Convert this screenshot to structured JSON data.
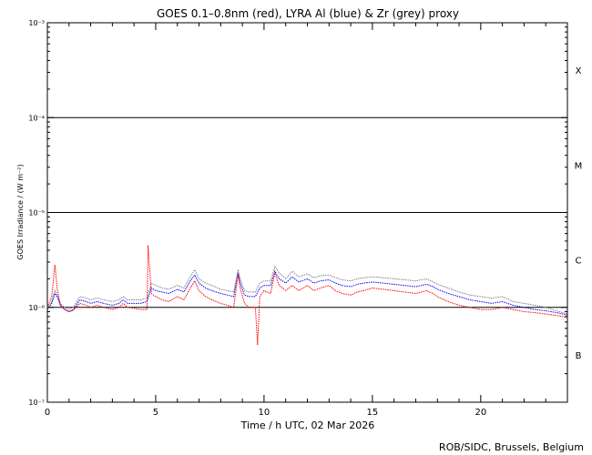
{
  "chart_data": {
    "type": "line",
    "title": "GOES 0.1–0.8nm (red), LYRA Al (blue) & Zr (grey) proxy",
    "xlabel": "Time / h UTC, 02 Mar 2026",
    "ylabel": "GOES Irradiance / (W m⁻²)",
    "xlim": [
      0,
      24
    ],
    "ylim_exponent": [
      -7,
      -3
    ],
    "yscale": "log",
    "x_ticks": [
      0,
      5,
      10,
      15,
      20
    ],
    "x_tick_labels": [
      "0",
      "5",
      "10",
      "15",
      "20"
    ],
    "y_ticks": [
      {
        "exp": -7,
        "label": "10⁻⁷"
      },
      {
        "exp": -6,
        "label": "10⁻⁶"
      },
      {
        "exp": -5,
        "label": "10⁻⁵"
      },
      {
        "exp": -4,
        "label": "10⁻⁴"
      },
      {
        "exp": -3,
        "label": "10⁻³"
      }
    ],
    "flare_classes": [
      {
        "label": "X",
        "exp": -3.5
      },
      {
        "label": "M",
        "exp": -4.5
      },
      {
        "label": "C",
        "exp": -5.5
      },
      {
        "label": "B",
        "exp": -6.5
      }
    ],
    "class_lines_exp": [
      -6,
      -5,
      -4
    ],
    "grid": false,
    "legend": "none",
    "colors": {
      "goes": "#ff0000",
      "lyra_al": "#0000ff",
      "lyra_zr": "#808080"
    },
    "series": [
      {
        "name": "GOES 0.1–0.8nm",
        "x": [
          0,
          0.2,
          0.35,
          0.45,
          0.6,
          0.8,
          1.0,
          1.2,
          1.5,
          1.8,
          2.0,
          2.3,
          2.6,
          3.0,
          3.3,
          3.5,
          3.7,
          4.0,
          4.3,
          4.6,
          4.65,
          4.8,
          5.0,
          5.3,
          5.6,
          6.0,
          6.3,
          6.6,
          6.8,
          7.0,
          7.3,
          7.6,
          8.0,
          8.3,
          8.6,
          8.8,
          8.9,
          9.1,
          9.3,
          9.6,
          9.7,
          9.8,
          10.0,
          10.3,
          10.5,
          10.7,
          11.0,
          11.3,
          11.6,
          12.0,
          12.3,
          12.6,
          13.0,
          13.3,
          13.6,
          14.0,
          14.3,
          14.6,
          15.0,
          15.5,
          16.0,
          16.5,
          17.0,
          17.5,
          17.8,
          18.0,
          18.5,
          19.0,
          19.5,
          20.0,
          20.5,
          21.0,
          21.5,
          22.0,
          22.5,
          23.0,
          23.5,
          24.0
        ],
        "y": [
          1e-06,
          1.3e-06,
          2.8e-06,
          1.6e-06,
          1.05e-06,
          9.5e-07,
          9e-07,
          9.3e-07,
          1.1e-06,
          1.05e-06,
          1e-06,
          1.05e-06,
          1e-06,
          9.5e-07,
          1e-06,
          1.1e-06,
          1e-06,
          9.8e-07,
          9.5e-07,
          9.5e-07,
          4.5e-06,
          1.4e-06,
          1.3e-06,
          1.2e-06,
          1.15e-06,
          1.3e-06,
          1.2e-06,
          1.6e-06,
          1.9e-06,
          1.5e-06,
          1.3e-06,
          1.2e-06,
          1.1e-06,
          1.05e-06,
          1e-06,
          2.2e-06,
          1.6e-06,
          1.1e-06,
          1e-06,
          1e-06,
          4e-07,
          1.3e-06,
          1.5e-06,
          1.4e-06,
          2.3e-06,
          1.7e-06,
          1.5e-06,
          1.7e-06,
          1.5e-06,
          1.7e-06,
          1.5e-06,
          1.6e-06,
          1.7e-06,
          1.5e-06,
          1.4e-06,
          1.35e-06,
          1.45e-06,
          1.5e-06,
          1.6e-06,
          1.55e-06,
          1.5e-06,
          1.45e-06,
          1.4e-06,
          1.5e-06,
          1.4e-06,
          1.3e-06,
          1.15e-06,
          1.05e-06,
          1e-06,
          9.5e-07,
          9.5e-07,
          1e-06,
          9.5e-07,
          9e-07,
          8.8e-07,
          8.5e-07,
          8.2e-07,
          7.8e-07
        ]
      },
      {
        "name": "LYRA Al",
        "x": [
          0,
          0.2,
          0.35,
          0.45,
          0.6,
          0.8,
          1.0,
          1.2,
          1.5,
          1.8,
          2.0,
          2.3,
          2.6,
          3.0,
          3.3,
          3.5,
          3.7,
          4.0,
          4.3,
          4.6,
          4.8,
          5.0,
          5.3,
          5.6,
          6.0,
          6.3,
          6.6,
          6.8,
          7.0,
          7.3,
          7.6,
          8.0,
          8.3,
          8.6,
          8.8,
          8.9,
          9.1,
          9.3,
          9.6,
          9.8,
          10.0,
          10.3,
          10.5,
          10.7,
          11.0,
          11.3,
          11.6,
          12.0,
          12.3,
          12.6,
          13.0,
          13.3,
          13.6,
          14.0,
          14.3,
          14.6,
          15.0,
          15.5,
          16.0,
          16.5,
          17.0,
          17.5,
          17.8,
          18.0,
          18.5,
          19.0,
          19.5,
          20.0,
          20.5,
          21.0,
          21.5,
          22.0,
          22.5,
          23.0,
          23.5,
          24.0
        ],
        "y": [
          9.5e-07,
          1.1e-06,
          1.4e-06,
          1.3e-06,
          1.05e-06,
          9.5e-07,
          9e-07,
          9.5e-07,
          1.2e-06,
          1.15e-06,
          1.1e-06,
          1.15e-06,
          1.1e-06,
          1.05e-06,
          1.1e-06,
          1.2e-06,
          1.1e-06,
          1.1e-06,
          1.1e-06,
          1.15e-06,
          1.6e-06,
          1.5e-06,
          1.45e-06,
          1.4e-06,
          1.55e-06,
          1.45e-06,
          1.9e-06,
          2.2e-06,
          1.8e-06,
          1.6e-06,
          1.5e-06,
          1.4e-06,
          1.35e-06,
          1.3e-06,
          2.3e-06,
          1.8e-06,
          1.35e-06,
          1.3e-06,
          1.3e-06,
          1.6e-06,
          1.7e-06,
          1.7e-06,
          2.4e-06,
          2e-06,
          1.8e-06,
          2.1e-06,
          1.85e-06,
          2e-06,
          1.8e-06,
          1.9e-06,
          1.95e-06,
          1.8e-06,
          1.7e-06,
          1.65e-06,
          1.75e-06,
          1.8e-06,
          1.85e-06,
          1.8e-06,
          1.75e-06,
          1.7e-06,
          1.65e-06,
          1.75e-06,
          1.65e-06,
          1.55e-06,
          1.4e-06,
          1.3e-06,
          1.2e-06,
          1.15e-06,
          1.1e-06,
          1.15e-06,
          1.05e-06,
          1e-06,
          9.5e-07,
          9.2e-07,
          8.8e-07,
          8.3e-07
        ]
      },
      {
        "name": "LYRA Zr",
        "x": [
          0,
          0.2,
          0.35,
          0.45,
          0.6,
          0.8,
          1.0,
          1.2,
          1.5,
          1.8,
          2.0,
          2.3,
          2.6,
          3.0,
          3.3,
          3.5,
          3.7,
          4.0,
          4.3,
          4.6,
          4.8,
          5.0,
          5.3,
          5.6,
          6.0,
          6.3,
          6.6,
          6.8,
          7.0,
          7.3,
          7.6,
          8.0,
          8.3,
          8.6,
          8.8,
          8.9,
          9.1,
          9.3,
          9.6,
          9.8,
          10.0,
          10.3,
          10.5,
          10.7,
          11.0,
          11.3,
          11.6,
          12.0,
          12.3,
          12.6,
          13.0,
          13.3,
          13.6,
          14.0,
          14.3,
          14.6,
          15.0,
          15.5,
          16.0,
          16.5,
          17.0,
          17.5,
          17.8,
          18.0,
          18.5,
          19.0,
          19.5,
          20.0,
          20.5,
          21.0,
          21.5,
          22.0,
          22.5,
          23.0,
          23.5,
          24.0
        ],
        "y": [
          9.8e-07,
          1.15e-06,
          1.5e-06,
          1.35e-06,
          1.1e-06,
          1e-06,
          9.5e-07,
          1e-06,
          1.3e-06,
          1.25e-06,
          1.2e-06,
          1.25e-06,
          1.2e-06,
          1.15e-06,
          1.2e-06,
          1.3e-06,
          1.2e-06,
          1.2e-06,
          1.2e-06,
          1.25e-06,
          1.8e-06,
          1.7e-06,
          1.6e-06,
          1.55e-06,
          1.7e-06,
          1.6e-06,
          2.1e-06,
          2.5e-06,
          2e-06,
          1.8e-06,
          1.7e-06,
          1.55e-06,
          1.5e-06,
          1.45e-06,
          2.5e-06,
          2e-06,
          1.5e-06,
          1.45e-06,
          1.45e-06,
          1.8e-06,
          1.9e-06,
          1.9e-06,
          2.7e-06,
          2.3e-06,
          2e-06,
          2.4e-06,
          2.1e-06,
          2.25e-06,
          2.05e-06,
          2.15e-06,
          2.2e-06,
          2.05e-06,
          1.95e-06,
          1.9e-06,
          2e-06,
          2.05e-06,
          2.1e-06,
          2.05e-06,
          2e-06,
          1.95e-06,
          1.9e-06,
          2e-06,
          1.85e-06,
          1.75e-06,
          1.6e-06,
          1.45e-06,
          1.35e-06,
          1.3e-06,
          1.25e-06,
          1.3e-06,
          1.15e-06,
          1.1e-06,
          1.05e-06,
          1e-06,
          9.2e-07,
          8.5e-07
        ]
      }
    ],
    "credit": "ROB/SIDC, Brussels, Belgium"
  }
}
